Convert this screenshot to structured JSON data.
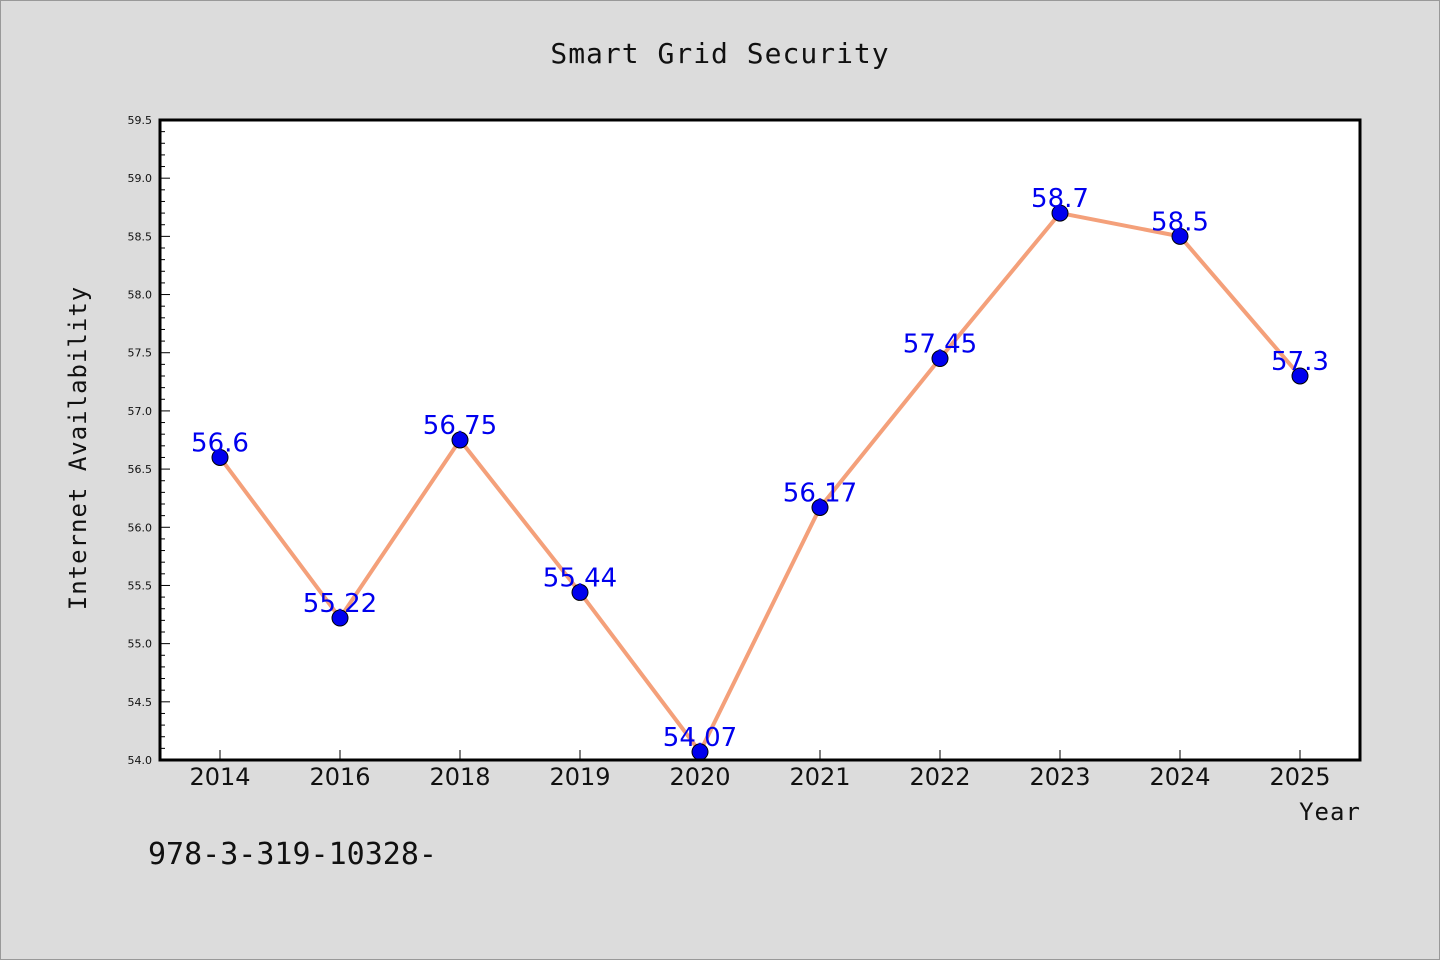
{
  "chart_data": {
    "type": "line",
    "title": "Smart Grid Security",
    "xlabel": "Year",
    "ylabel": "Internet Availability",
    "categories": [
      "2014",
      "2016",
      "2018",
      "2019",
      "2020",
      "2021",
      "2022",
      "2023",
      "2024",
      "2025"
    ],
    "values": [
      56.6,
      55.22,
      56.75,
      55.44,
      54.07,
      56.17,
      57.45,
      58.7,
      58.5,
      57.3
    ],
    "data_labels": [
      "56.6",
      "55.22",
      "56.75",
      "55.44",
      "54.07",
      "56.17",
      "57.45",
      "58.7",
      "58.5",
      "57.3"
    ],
    "ylim": [
      54.0,
      59.5
    ],
    "yticks": [
      "54.0",
      "54.5",
      "55.0",
      "55.5",
      "56.0",
      "56.5",
      "57.0",
      "57.5",
      "58.0",
      "58.5",
      "59.0",
      "59.5"
    ],
    "grid": false,
    "line_color": "#f4a07a",
    "marker_color": "#0000ee",
    "label_color": "#0000ee",
    "plot_background": "#ffffff",
    "page_background": "#dcdcdc"
  },
  "footnote": "978-3-319-10328-"
}
